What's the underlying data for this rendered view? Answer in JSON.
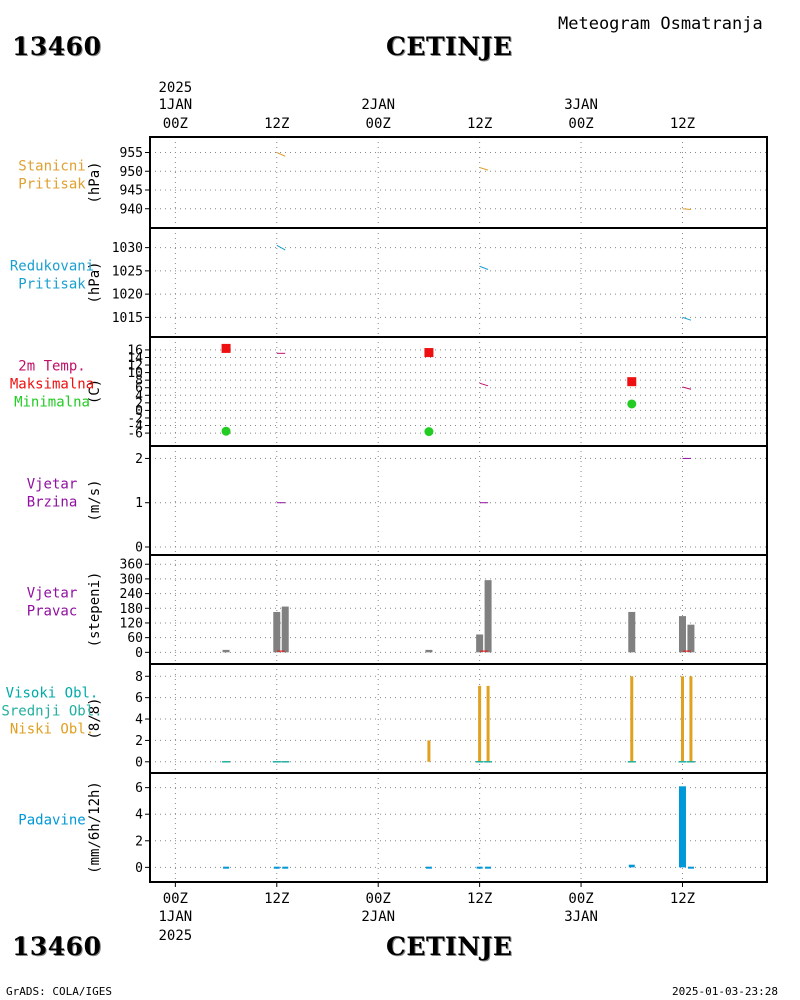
{
  "header": {
    "station_id": "13460",
    "station_name": "CETINJE",
    "meteogram_title": "Meteogram Osmatranja"
  },
  "footer": {
    "station_id": "13460",
    "station_name": "CETINJE",
    "credit": "GrADS: COLA/IGES",
    "timestamp": "2025-01-03-23:28"
  },
  "time_axis": {
    "top_year": "2025",
    "bottom_year": "2025",
    "ticks": [
      {
        "hour": 0,
        "label": "00Z",
        "date": "1JAN"
      },
      {
        "hour": 12,
        "label": "12Z",
        "date": ""
      },
      {
        "hour": 24,
        "label": "00Z",
        "date": "2JAN"
      },
      {
        "hour": 36,
        "label": "12Z",
        "date": ""
      },
      {
        "hour": 48,
        "label": "00Z",
        "date": "3JAN"
      },
      {
        "hour": 60,
        "label": "12Z",
        "date": ""
      }
    ],
    "range_hours": [
      -3,
      70
    ]
  },
  "colors": {
    "station_pressure": "#e0a030",
    "reduced_pressure": "#1aa0d0",
    "temp_label": "#c0106a",
    "temp_max": "#ee1010",
    "temp_min": "#22cc22",
    "wind": "#9010a0",
    "bars_gray": "#808080",
    "cloud_high": "#00aaaa",
    "cloud_mid": "#20b0a0",
    "cloud_low": "#e0a020",
    "precip": "#0098d8"
  },
  "chart_data": [
    {
      "type": "line",
      "panel": "station_pressure",
      "labels": [
        "Stanicni",
        "Pritisak"
      ],
      "unit": "(hPa)",
      "yticks": [
        940,
        945,
        950,
        955
      ],
      "ylim": [
        937,
        957
      ],
      "segments": [
        {
          "x": [
            12,
            13
          ],
          "y": [
            955,
            954
          ]
        },
        {
          "x": [
            36,
            37
          ],
          "y": [
            951,
            950.3
          ]
        },
        {
          "x": [
            60,
            61
          ],
          "y": [
            940,
            939.8
          ]
        }
      ]
    },
    {
      "type": "line",
      "panel": "reduced_pressure",
      "labels": [
        "Redukovani",
        "Pritisak"
      ],
      "unit": "(hPa)",
      "yticks": [
        1015,
        1020,
        1025,
        1030
      ],
      "ylim": [
        1012.5,
        1032.5
      ],
      "segments": [
        {
          "x": [
            12,
            13
          ],
          "y": [
            1030.5,
            1029.5
          ]
        },
        {
          "x": [
            36,
            37
          ],
          "y": [
            1026,
            1025.3
          ]
        },
        {
          "x": [
            60,
            61
          ],
          "y": [
            1015,
            1014.4
          ]
        }
      ]
    },
    {
      "type": "scatter",
      "panel": "temperature",
      "labels": [
        "2m Temp.",
        "Maksimalna",
        "Minimalna"
      ],
      "unit": "(C)",
      "yticks": [
        -6,
        -4,
        -2,
        0,
        2,
        4,
        6,
        8,
        10,
        12,
        14,
        16
      ],
      "ylim": [
        -7.3,
        17.3
      ],
      "temp_segments": [
        {
          "x": [
            12,
            13
          ],
          "y": [
            15.1,
            15.1
          ]
        },
        {
          "x": [
            36,
            37
          ],
          "y": [
            7.2,
            6.5
          ]
        },
        {
          "x": [
            60,
            61
          ],
          "y": [
            6.2,
            5.6
          ]
        }
      ],
      "max": [
        {
          "x": 6,
          "y": 16.4
        },
        {
          "x": 30,
          "y": 15.3
        },
        {
          "x": 54,
          "y": 7.6
        }
      ],
      "min": [
        {
          "x": 6,
          "y": -5.5
        },
        {
          "x": 30,
          "y": -5.6
        },
        {
          "x": 54,
          "y": 1.7
        }
      ]
    },
    {
      "type": "line",
      "panel": "wind_speed",
      "labels": [
        "Vjetar",
        "Brzina"
      ],
      "unit": "(m/s)",
      "yticks": [
        0,
        1,
        2
      ],
      "ylim": [
        0,
        2.1
      ],
      "segments": [
        {
          "x": [
            12,
            13
          ],
          "y": [
            1,
            1
          ]
        },
        {
          "x": [
            36,
            37
          ],
          "y": [
            1,
            1
          ]
        },
        {
          "x": [
            60,
            61
          ],
          "y": [
            2,
            2
          ]
        }
      ]
    },
    {
      "type": "bar",
      "panel": "wind_direction",
      "labels": [
        "Vjetar",
        "Pravac"
      ],
      "unit": "(stepeni)",
      "yticks": [
        0,
        60,
        120,
        180,
        240,
        300,
        360
      ],
      "ylim": [
        -15,
        365
      ],
      "bars": [
        {
          "x": 6,
          "y": 10
        },
        {
          "x": 12,
          "y": 165
        },
        {
          "x": 13,
          "y": 187
        },
        {
          "x": 30,
          "y": 10
        },
        {
          "x": 36,
          "y": 73
        },
        {
          "x": 37,
          "y": 295
        },
        {
          "x": 54,
          "y": 165
        },
        {
          "x": 60,
          "y": 148
        },
        {
          "x": 61,
          "y": 113
        }
      ],
      "red_marks": [
        {
          "x": 12.5,
          "y": 5
        },
        {
          "x": 36.5,
          "y": 5
        },
        {
          "x": 60.5,
          "y": 5
        }
      ]
    },
    {
      "type": "bar",
      "panel": "clouds",
      "labels": [
        "Visoki Obl.",
        "Srednji Obl.",
        "Niski Obl."
      ],
      "unit": "(8/8)",
      "yticks": [
        0,
        2,
        4,
        6,
        8
      ],
      "ylim": [
        -0.3,
        8.4
      ],
      "low": [
        {
          "x": 30,
          "y": 2
        },
        {
          "x": 36,
          "y": 7.1
        },
        {
          "x": 37,
          "y": 7.1
        },
        {
          "x": 54,
          "y": 8
        },
        {
          "x": 60,
          "y": 8
        },
        {
          "x": 61,
          "y": 8
        }
      ],
      "high_ticks": [
        6,
        12,
        13,
        36,
        37,
        54,
        60,
        61
      ]
    },
    {
      "type": "bar",
      "panel": "precipitation",
      "labels": [
        "Padavine"
      ],
      "unit": "(mm/6h/12h)",
      "yticks": [
        0,
        2,
        4,
        6
      ],
      "ylim": [
        -0.5,
        6.5
      ],
      "bars": [
        {
          "x": 6,
          "y": 0.05
        },
        {
          "x": 12,
          "y": 0.05
        },
        {
          "x": 13,
          "y": 0.05
        },
        {
          "x": 30,
          "y": 0.05
        },
        {
          "x": 36,
          "y": 0.05
        },
        {
          "x": 37,
          "y": 0.05
        },
        {
          "x": 54,
          "y": 0.2
        },
        {
          "x": 60,
          "y": 6.1
        },
        {
          "x": 61,
          "y": 0.05
        }
      ]
    }
  ]
}
